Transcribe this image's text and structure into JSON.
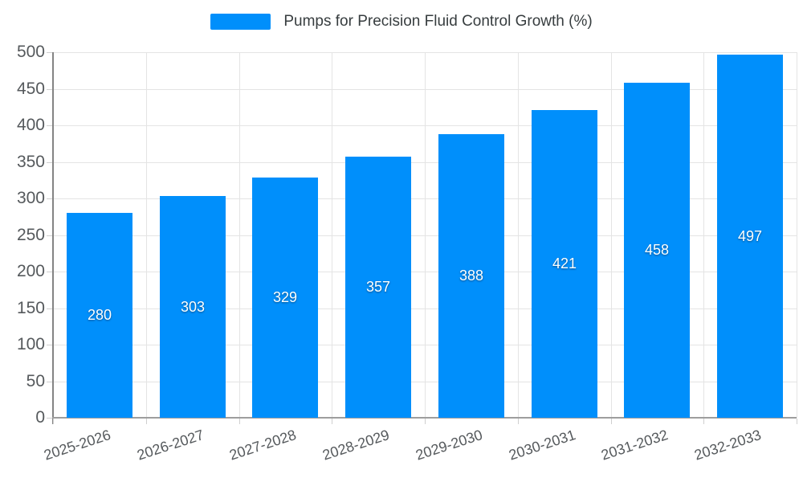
{
  "chart_data": {
    "type": "bar",
    "title": "Pumps for Precision Fluid Control Growth (%)",
    "series": [
      {
        "name": "Pumps for Precision Fluid Control Growth (%)",
        "values": [
          280,
          303,
          329,
          357,
          388,
          421,
          458,
          497
        ]
      }
    ],
    "categories": [
      "2025-2026",
      "2026-2027",
      "2027-2028",
      "2028-2029",
      "2029-2030",
      "2030-2031",
      "2031-2032",
      "2032-2033"
    ],
    "data_labels": [
      "280",
      "303",
      "329",
      "357",
      "388",
      "421",
      "458",
      "497"
    ],
    "xlabel": "",
    "ylabel": "",
    "ylim": [
      0,
      500
    ],
    "ytick_step": 50,
    "ytick_labels": [
      "0",
      "50",
      "100",
      "150",
      "200",
      "250",
      "300",
      "350",
      "400",
      "450",
      "500"
    ],
    "grid": true,
    "legend_position": "top",
    "colors": {
      "bar": "#008FFB",
      "bar_value_label": "#FFFFFF",
      "axis_label": "#55595C",
      "legend_text": "#373D3F",
      "gridline": "#E4E4E4",
      "y_axis_line": "#848484",
      "x_axis_line": "#9E9E9E",
      "tick": "#CFCFCF"
    }
  }
}
